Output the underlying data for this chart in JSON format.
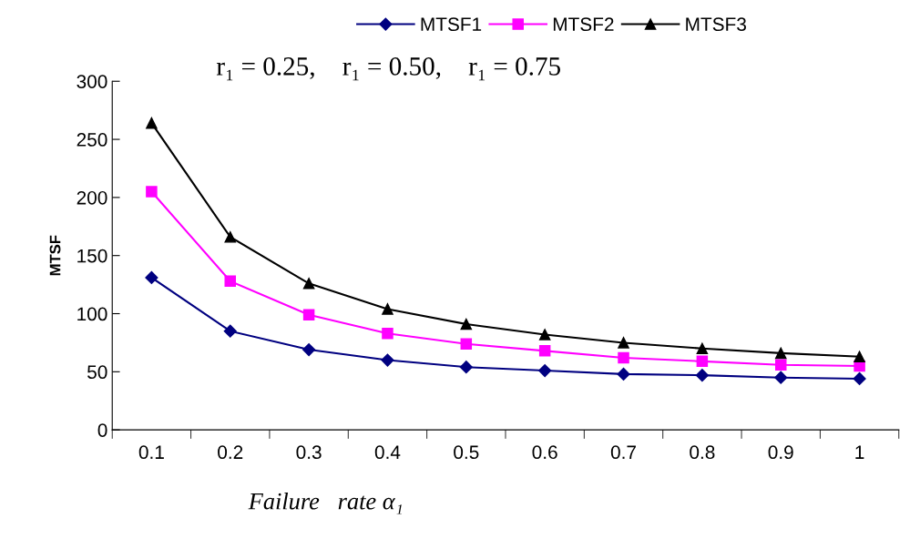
{
  "chart_data": {
    "type": "line",
    "subtitle": "r₁ = 0.25,    r₁ = 0.50,    r₁ = 0.75",
    "xlabel": "Failure   rate α₁",
    "ylabel": "MTSF",
    "categories": [
      "0.1",
      "0.2",
      "0.3",
      "0.4",
      "0.5",
      "0.6",
      "0.7",
      "0.8",
      "0.9",
      "1"
    ],
    "series": [
      {
        "name": "MTSF1",
        "color": "#000080",
        "marker": "diamond",
        "values": [
          131,
          85,
          69,
          60,
          54,
          51,
          48,
          47,
          45,
          44
        ]
      },
      {
        "name": "MTSF2",
        "color": "#ff00ff",
        "marker": "square",
        "values": [
          205,
          128,
          99,
          83,
          74,
          68,
          62,
          59,
          56,
          55
        ]
      },
      {
        "name": "MTSF3",
        "color": "#000000",
        "marker": "triangle",
        "values": [
          264,
          166,
          126,
          104,
          91,
          82,
          75,
          70,
          66,
          63
        ]
      }
    ],
    "ylim": [
      0,
      300
    ],
    "yticks": [
      0,
      50,
      100,
      150,
      200,
      250,
      300
    ],
    "grid": false,
    "legend": "top",
    "line_style": "solid"
  }
}
